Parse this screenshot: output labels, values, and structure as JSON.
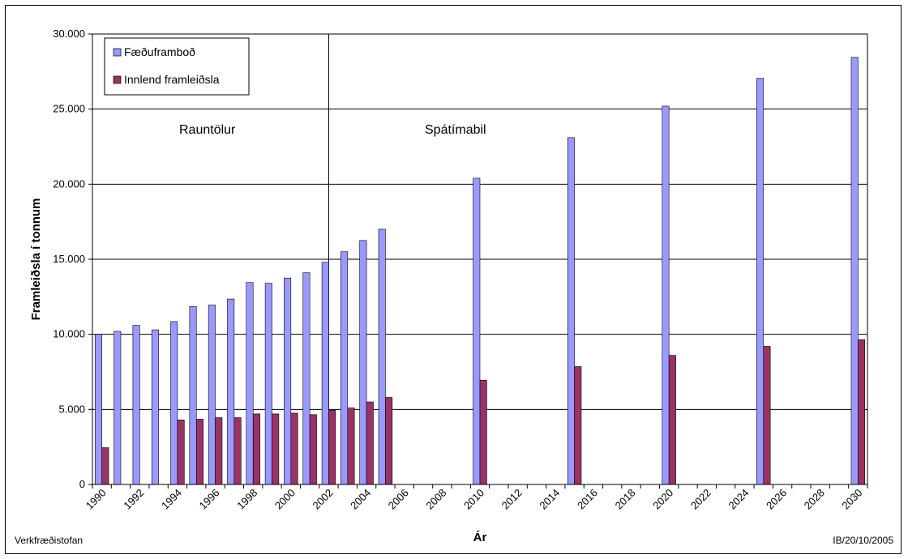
{
  "chart_data": {
    "type": "bar",
    "title": "",
    "xlabel": "Ár",
    "ylabel": "Framleiðsla í tonnum",
    "ylim": [
      0,
      30000
    ],
    "yticks": [
      "0",
      "5.000",
      "10.000",
      "15.000",
      "20.000",
      "25.000",
      "30.000"
    ],
    "grid": true,
    "legend_position": "top-left",
    "categories": [
      "1990",
      "1991",
      "1992",
      "1993",
      "1994",
      "1995",
      "1996",
      "1997",
      "1998",
      "1999",
      "2000",
      "2001",
      "2002",
      "2003",
      "2004",
      "2005",
      "2006",
      "2007",
      "2008",
      "2009",
      "2010",
      "2011",
      "2012",
      "2013",
      "2014",
      "2015",
      "2016",
      "2017",
      "2018",
      "2019",
      "2020",
      "2021",
      "2022",
      "2023",
      "2024",
      "2025",
      "2026",
      "2027",
      "2028",
      "2029",
      "2030"
    ],
    "tick_labels": [
      "1990",
      "1992",
      "1994",
      "1996",
      "1998",
      "2000",
      "2002",
      "2004",
      "2006",
      "2008",
      "2010",
      "2012",
      "2014",
      "2016",
      "2018",
      "2020",
      "2022",
      "2024",
      "2026",
      "2028",
      "2030"
    ],
    "series": [
      {
        "name": "Fæðuframboð",
        "color": "#9999ff",
        "values": [
          10000,
          10200,
          10600,
          10300,
          10850,
          11850,
          11950,
          12350,
          13450,
          13400,
          13750,
          14100,
          14800,
          15500,
          16250,
          17000,
          null,
          null,
          null,
          null,
          20400,
          null,
          null,
          null,
          null,
          23100,
          null,
          null,
          null,
          null,
          25200,
          null,
          null,
          null,
          null,
          27050,
          null,
          null,
          null,
          null,
          28450
        ]
      },
      {
        "name": "Innlend framleiðsla",
        "color": "#993366",
        "values": [
          2450,
          null,
          null,
          null,
          4300,
          4350,
          4450,
          4450,
          4700,
          4700,
          4750,
          4650,
          4950,
          5100,
          5500,
          5800,
          null,
          null,
          null,
          null,
          6950,
          null,
          null,
          null,
          null,
          7850,
          null,
          null,
          null,
          null,
          8600,
          null,
          null,
          null,
          null,
          9200,
          null,
          null,
          null,
          null,
          9650
        ]
      }
    ],
    "divider_after": "2002",
    "annotations": [
      "Rauntölur",
      "Spátímabil"
    ]
  },
  "footer": {
    "left": "Verkfræðistofan",
    "right": "IB/20/10/2005"
  },
  "colors": {
    "plot_border": "#000000",
    "grid": "#000000"
  }
}
